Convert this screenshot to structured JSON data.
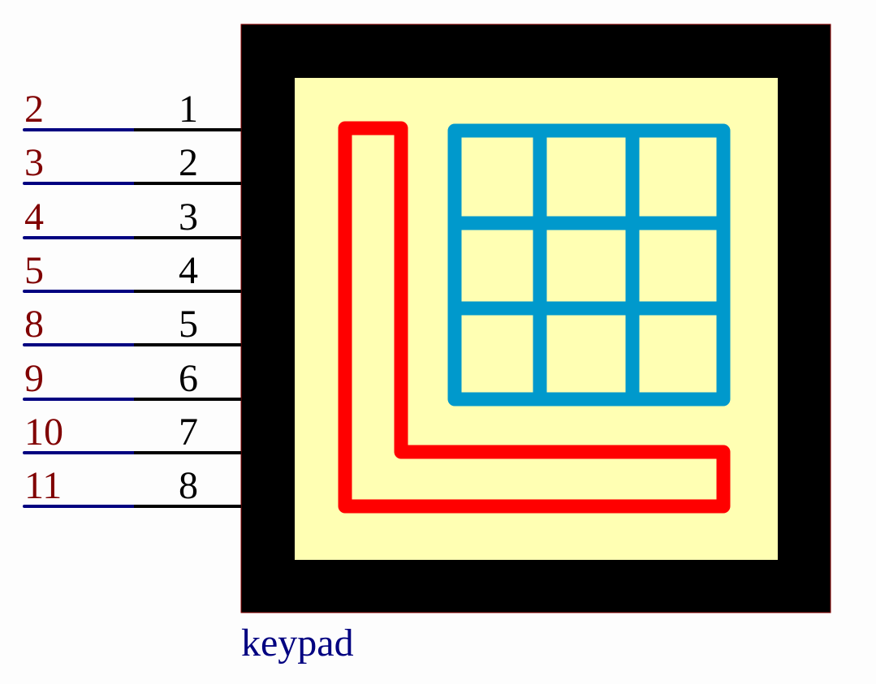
{
  "component": {
    "name": "keypad",
    "colors": {
      "body": "#000000",
      "body_border": "#8b0000",
      "inner": "#ffffb3",
      "keys": "#0099cc",
      "l_shape": "#ff0000",
      "pin_line": "#000000",
      "net_line": "#000080",
      "net_label": "#800000",
      "pin_number": "#000000",
      "name_label": "#000080"
    },
    "keys_grid": {
      "rows": 3,
      "cols": 3
    }
  },
  "pins": [
    {
      "pin": "1",
      "net": "2"
    },
    {
      "pin": "2",
      "net": "3"
    },
    {
      "pin": "3",
      "net": "4"
    },
    {
      "pin": "4",
      "net": "5"
    },
    {
      "pin": "5",
      "net": "8"
    },
    {
      "pin": "6",
      "net": "9"
    },
    {
      "pin": "7",
      "net": "10"
    },
    {
      "pin": "8",
      "net": "11"
    }
  ]
}
